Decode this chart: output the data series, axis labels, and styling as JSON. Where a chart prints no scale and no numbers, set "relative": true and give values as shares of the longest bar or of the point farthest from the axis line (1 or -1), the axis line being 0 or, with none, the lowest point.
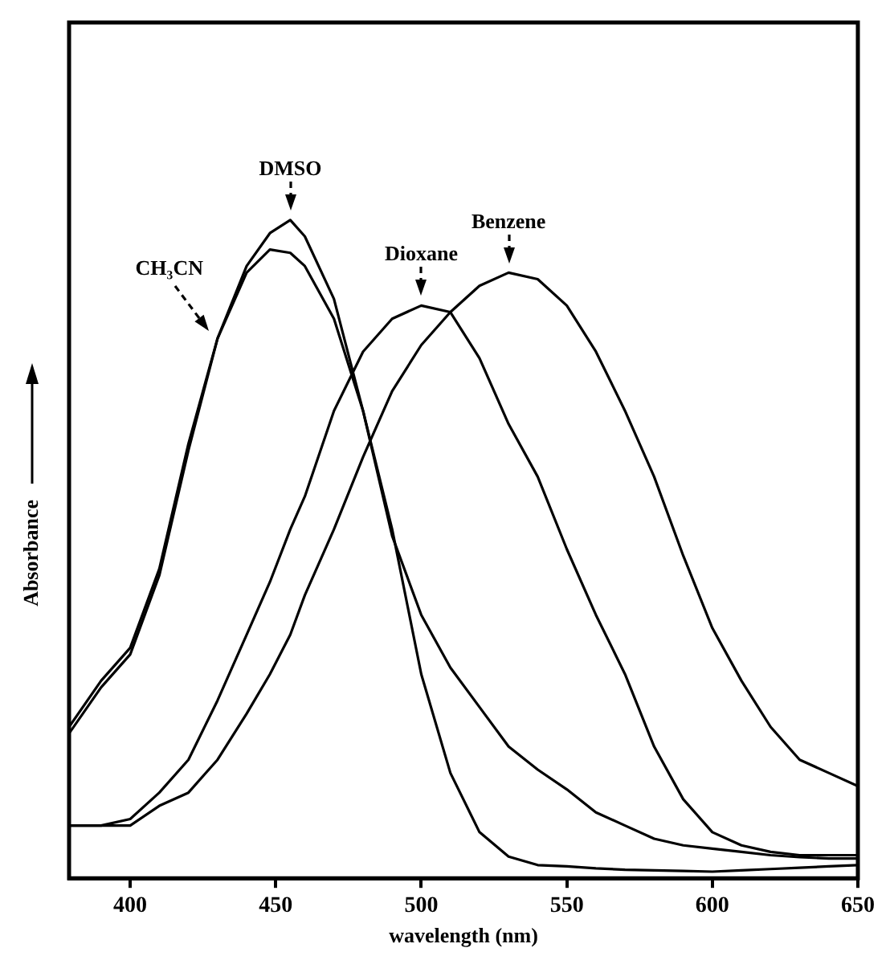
{
  "chart_data": {
    "type": "line",
    "xlabel": "wavelength (nm)",
    "ylabel": "Absorbance",
    "relative": true,
    "xlim": [
      379,
      650
    ],
    "xticks": [
      400,
      450,
      500,
      550,
      600,
      650
    ],
    "grid": false,
    "marker": "none",
    "line_style": "solid",
    "x": [
      379,
      390,
      400,
      410,
      420,
      430,
      440,
      448,
      455,
      460,
      470,
      480,
      490,
      500,
      510,
      520,
      530,
      540,
      550,
      560,
      570,
      580,
      590,
      600,
      610,
      620,
      630,
      640,
      650
    ],
    "series": [
      {
        "name": "CH₃CN",
        "color": "#000000",
        "values": [
          0.22,
          0.29,
          0.34,
          0.46,
          0.65,
          0.82,
          0.92,
          0.955,
          0.95,
          0.93,
          0.85,
          0.71,
          0.52,
          0.4,
          0.32,
          0.26,
          0.2,
          0.165,
          0.135,
          0.1,
          0.08,
          0.06,
          0.05,
          0.045,
          0.04,
          0.035,
          0.032,
          0.03,
          0.03
        ]
      },
      {
        "name": "DMSO",
        "color": "#000000",
        "values": [
          0.23,
          0.3,
          0.35,
          0.47,
          0.66,
          0.82,
          0.93,
          0.98,
          1,
          0.975,
          0.88,
          0.71,
          0.53,
          0.31,
          0.16,
          0.07,
          0.033,
          0.02,
          0.018,
          0.015,
          0.013,
          0.012,
          0.011,
          0.01,
          0.012,
          0.014,
          0.016,
          0.018,
          0.02
        ]
      },
      {
        "name": "Dioxane",
        "color": "#000000",
        "values": [
          0.08,
          0.08,
          0.09,
          0.13,
          0.18,
          0.27,
          0.37,
          0.45,
          0.53,
          0.58,
          0.71,
          0.8,
          0.85,
          0.87,
          0.86,
          0.79,
          0.69,
          0.61,
          0.5,
          0.4,
          0.31,
          0.2,
          0.12,
          0.07,
          0.05,
          0.04,
          0.035,
          0.035,
          0.035
        ]
      },
      {
        "name": "Benzene",
        "color": "#000000",
        "values": [
          0.08,
          0.08,
          0.08,
          0.11,
          0.13,
          0.18,
          0.25,
          0.31,
          0.37,
          0.43,
          0.53,
          0.64,
          0.74,
          0.81,
          0.86,
          0.9,
          0.92,
          0.91,
          0.87,
          0.8,
          0.71,
          0.61,
          0.49,
          0.38,
          0.3,
          0.23,
          0.18,
          0.16,
          0.14
        ]
      }
    ]
  }
}
